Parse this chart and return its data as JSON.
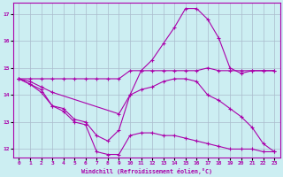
{
  "xlabel": "Windchill (Refroidissement éolien,°C)",
  "xlim": [
    -0.5,
    23.5
  ],
  "ylim": [
    11.7,
    17.4
  ],
  "yticks": [
    12,
    13,
    14,
    15,
    16,
    17
  ],
  "xticks": [
    0,
    1,
    2,
    3,
    4,
    5,
    6,
    7,
    8,
    9,
    10,
    11,
    12,
    13,
    14,
    15,
    16,
    17,
    18,
    19,
    20,
    21,
    22,
    23
  ],
  "background_color": "#cceef2",
  "grid_color": "#aabbcc",
  "line_color": "#aa00aa",
  "lines": [
    {
      "x": [
        0,
        1,
        2,
        3,
        4,
        5,
        6,
        7,
        8,
        9,
        10,
        11,
        12,
        13,
        14,
        15,
        16,
        17,
        18,
        19,
        20,
        21,
        22,
        23
      ],
      "y": [
        14.6,
        14.6,
        14.6,
        14.6,
        14.6,
        14.6,
        14.6,
        14.6,
        14.6,
        14.6,
        14.9,
        14.9,
        14.9,
        14.9,
        14.9,
        14.9,
        14.9,
        15.0,
        14.9,
        14.9,
        14.9,
        14.9,
        14.9,
        14.9
      ]
    },
    {
      "x": [
        0,
        1,
        2,
        3,
        9,
        10,
        11,
        12,
        13,
        14,
        15,
        16,
        17,
        18,
        19,
        20,
        21,
        22,
        23
      ],
      "y": [
        14.6,
        14.5,
        14.3,
        14.1,
        13.3,
        14.0,
        14.9,
        15.3,
        15.9,
        16.5,
        17.2,
        17.2,
        16.8,
        16.1,
        15.0,
        14.8,
        14.9,
        14.9,
        14.9
      ]
    },
    {
      "x": [
        0,
        1,
        2,
        3,
        4,
        5,
        6,
        7,
        8,
        9,
        10,
        11,
        12,
        13,
        14,
        15,
        16,
        17,
        18,
        19,
        20,
        21,
        22,
        23
      ],
      "y": [
        14.6,
        14.4,
        14.2,
        13.6,
        13.5,
        13.1,
        13.0,
        12.5,
        12.3,
        12.7,
        14.0,
        14.2,
        14.3,
        14.5,
        14.6,
        14.6,
        14.5,
        14.0,
        13.8,
        13.5,
        13.2,
        12.8,
        12.2,
        11.9
      ]
    },
    {
      "x": [
        0,
        1,
        2,
        3,
        4,
        5,
        6,
        7,
        8,
        9,
        10,
        11,
        12,
        13,
        14,
        15,
        16,
        17,
        18,
        19,
        20,
        21,
        22,
        23
      ],
      "y": [
        14.6,
        14.4,
        14.1,
        13.6,
        13.4,
        13.0,
        12.9,
        11.9,
        11.8,
        11.8,
        12.5,
        12.6,
        12.6,
        12.5,
        12.5,
        12.4,
        12.3,
        12.2,
        12.1,
        12.0,
        12.0,
        12.0,
        11.9,
        11.9
      ]
    }
  ]
}
